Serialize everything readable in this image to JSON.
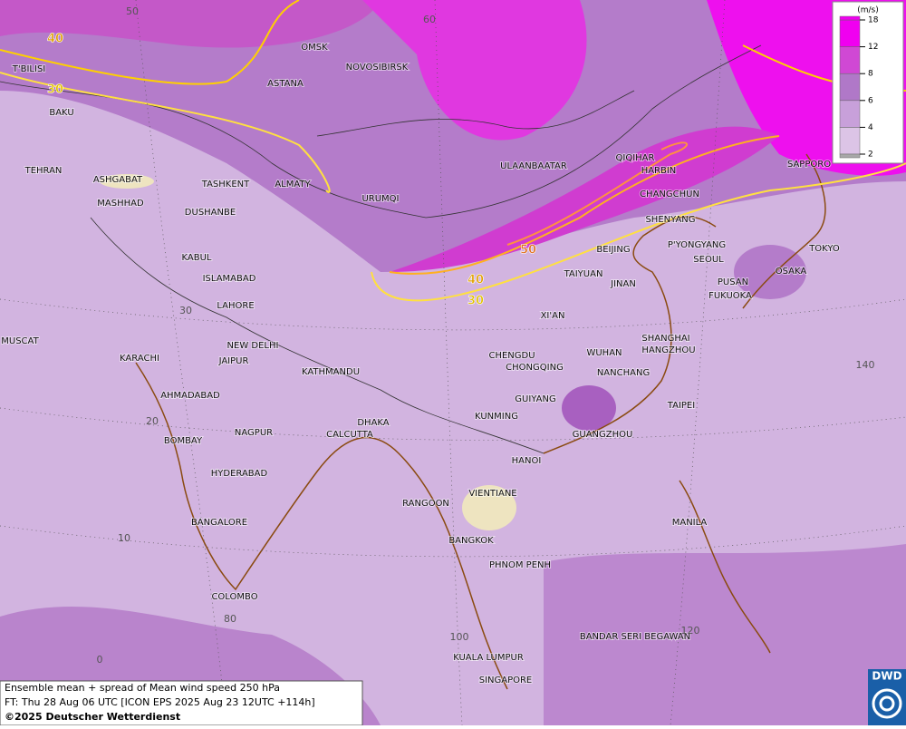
{
  "legend": {
    "unit": "(m/s)",
    "ticks": [
      2,
      4,
      6,
      8,
      12,
      18
    ],
    "colors": [
      "#a8a8a8",
      "#dcc4e6",
      "#c8a0da",
      "#b078c8",
      "#d048d4",
      "#f000f0"
    ]
  },
  "cities": [
    "OMSK",
    "NOVOSIBIRSK",
    "ASTANA",
    "T'BILISI",
    "BAKU",
    "TEHRAN",
    "ASHGABAT",
    "MASHHAD",
    "TASHKENT",
    "ALMATY",
    "DUSHANBE",
    "URUMQI",
    "ULAANBAATAR",
    "QIQIHAR",
    "HARBIN",
    "CHANGCHUN",
    "SAPPORO",
    "SHENYANG",
    "BEIJING",
    "P'YONGYANG",
    "SEOUL",
    "TOKYO",
    "OSAKA",
    "PUSAN",
    "FUKUOKA",
    "TAIYUAN",
    "JINAN",
    "KABUL",
    "ISLAMABAD",
    "LAHORE",
    "XI'AN",
    "NEW DELHI",
    "JAIPUR",
    "KARACHI",
    "MUSCAT",
    "KATHMANDU",
    "CHENGDU",
    "CHONGQING",
    "WUHAN",
    "SHANGHAI",
    "HANGZHOU",
    "NANCHANG",
    "AHMADABAD",
    "GUIYANG",
    "TAIPEI",
    "KUNMING",
    "DHAKA",
    "CALCUTTA",
    "NAGPUR",
    "BOMBAY",
    "GUANGZHOU",
    "HANOI",
    "HYDERABAD",
    "RANGOON",
    "VIENTIANE",
    "BANGALORE",
    "MANILA",
    "BANGKOK",
    "PHNOM PENH",
    "COLOMBO",
    "BANDAR SERI BEGAWAN",
    "KUALA LUMPUR",
    "SINGAPORE"
  ],
  "grid_labels": [
    "50",
    "60",
    "30",
    "20",
    "10",
    "0",
    "80",
    "100",
    "120",
    "140"
  ],
  "contour_labels": [
    "40",
    "30",
    "50",
    "40",
    "30"
  ],
  "caption": [
    "Ensemble mean + spread of Mean wind speed 250 hPa",
    "FT: Thu 28 Aug 06 UTC [ICON EPS 2025 Aug 23 12UTC +114h]",
    "©2025 Deutscher Wetterdienst"
  ],
  "logo": "DWD"
}
